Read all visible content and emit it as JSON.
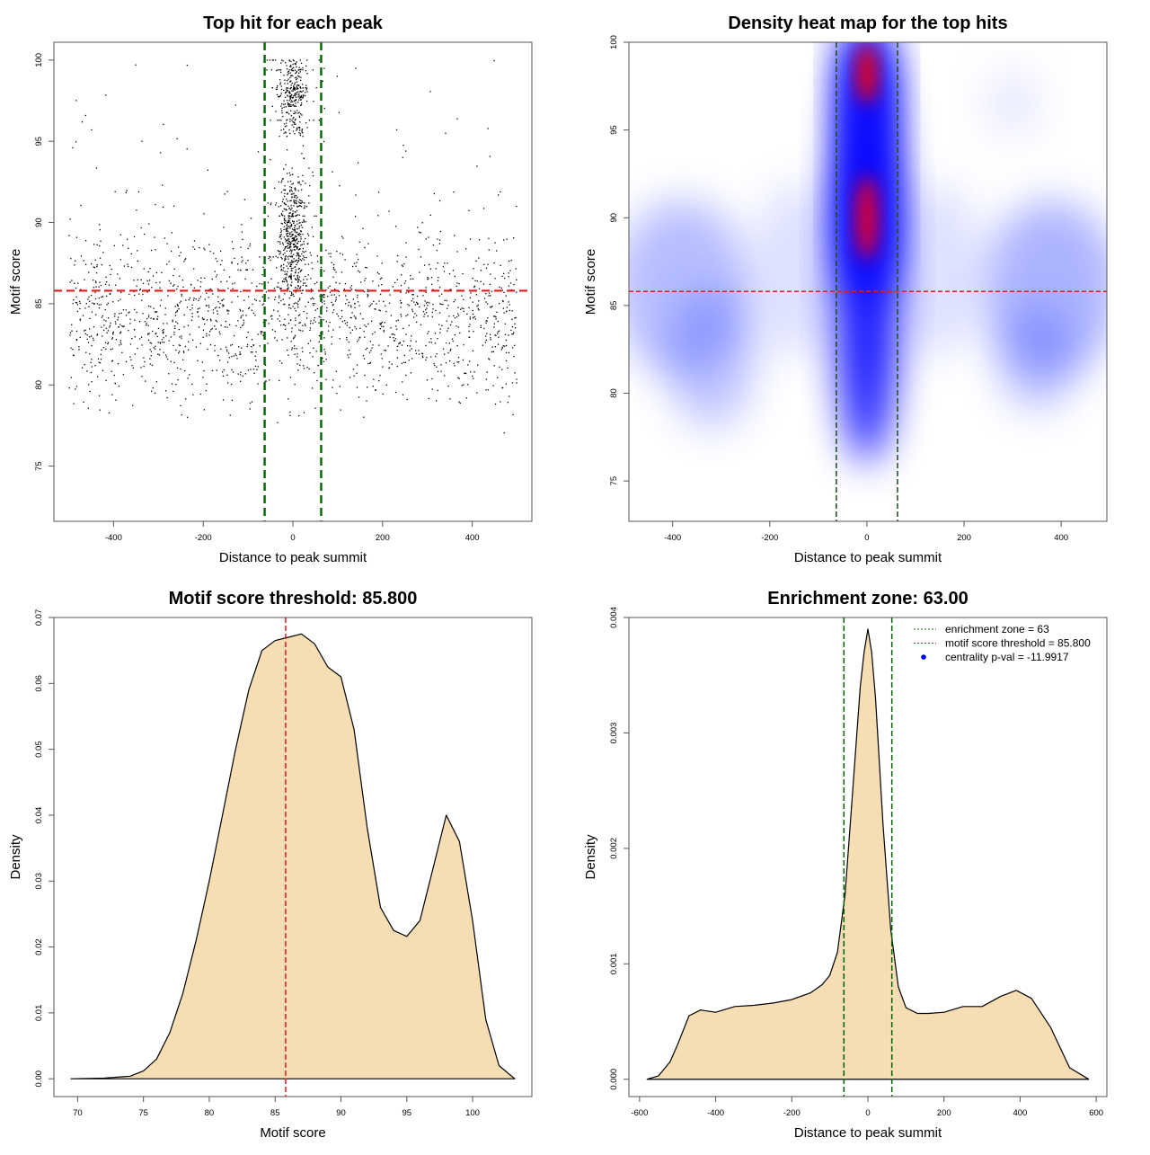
{
  "chart_data": [
    {
      "type": "scatter",
      "title": "Top hit for each peak",
      "xlabel": "Distance to peak summit",
      "ylabel": "Motif score",
      "xlim": [
        -533,
        533
      ],
      "ylim": [
        71.6,
        101.1
      ],
      "xticks": [
        -400,
        -200,
        0,
        200,
        400
      ],
      "yticks": [
        75,
        80,
        85,
        90,
        95,
        100
      ],
      "hlines": [
        {
          "y": 85.8,
          "color": "#e31a1c",
          "style": "dashed"
        }
      ],
      "vlines": [
        {
          "x": -63,
          "color": "#006400",
          "style": "dashed"
        },
        {
          "x": 63,
          "color": "#006400",
          "style": "dashed"
        }
      ],
      "point_color": "#000000"
    },
    {
      "type": "heatmap",
      "title": "Density heat map for the top hits",
      "xlabel": "Distance to peak summit",
      "ylabel": "Motif score",
      "xlim": [
        -490,
        494
      ],
      "ylim": [
        72.7,
        100
      ],
      "xticks": [
        -400,
        -200,
        0,
        200,
        400
      ],
      "yticks": [
        75,
        80,
        85,
        90,
        95,
        100
      ],
      "colors": [
        "#ffffff",
        "#0000ff",
        "#ff0000"
      ],
      "hlines": [
        {
          "y": 85.8,
          "color": "#e31a1c",
          "style": "dashed"
        }
      ],
      "vlines": [
        {
          "x": -63,
          "color": "#1a4d1a",
          "style": "dashed"
        },
        {
          "x": 63,
          "color": "#1a4d1a",
          "style": "dashed"
        }
      ]
    },
    {
      "type": "area",
      "title": "Motif score threshold: 85.800",
      "xlabel": "Motif score",
      "ylabel": "Density",
      "xlim": [
        68.2,
        104.5
      ],
      "ylim": [
        -0.0027,
        0.07
      ],
      "xticks": [
        70,
        75,
        80,
        85,
        90,
        95,
        100
      ],
      "yticks": [
        "0.00",
        "0.01",
        "0.02",
        "0.03",
        "0.04",
        "0.05",
        "0.06",
        "0.07"
      ],
      "fill": "#f5deb3",
      "x": [
        69.5,
        72,
        74,
        75,
        76,
        77,
        78,
        79,
        80,
        81,
        82,
        83,
        84,
        85,
        86,
        87,
        88,
        89,
        90,
        91,
        92,
        93,
        94,
        95,
        96,
        97,
        98,
        99,
        100,
        101,
        102,
        103.2
      ],
      "y": [
        0,
        0.0001,
        0.0004,
        0.0012,
        0.003,
        0.007,
        0.013,
        0.021,
        0.03,
        0.04,
        0.05,
        0.059,
        0.065,
        0.0665,
        0.067,
        0.0675,
        0.066,
        0.0625,
        0.061,
        0.053,
        0.038,
        0.026,
        0.0225,
        0.0216,
        0.024,
        0.032,
        0.04,
        0.036,
        0.024,
        0.009,
        0.002,
        0
      ],
      "vlines": [
        {
          "x": 85.8,
          "color": "#e31a1c",
          "style": "dashed"
        }
      ]
    },
    {
      "type": "area",
      "title": "Enrichment zone: 63.00",
      "xlabel": "Distance to peak summit",
      "ylabel": "Density",
      "xlim": [
        -628,
        628
      ],
      "ylim": [
        -0.00015,
        0.004
      ],
      "xticks": [
        -600,
        -400,
        -200,
        0,
        200,
        400,
        600
      ],
      "yticks": [
        "0.000",
        "0.001",
        "0.002",
        "0.003",
        "0.004"
      ],
      "fill": "#f5deb3",
      "x": [
        -580,
        -550,
        -520,
        -500,
        -470,
        -440,
        -400,
        -350,
        -300,
        -250,
        -200,
        -150,
        -120,
        -100,
        -80,
        -60,
        -40,
        -20,
        -10,
        0,
        10,
        20,
        40,
        60,
        80,
        100,
        130,
        160,
        200,
        250,
        300,
        350,
        390,
        430,
        480,
        530,
        580
      ],
      "y": [
        0,
        3e-05,
        0.00015,
        0.0003,
        0.00055,
        0.0006,
        0.00058,
        0.00063,
        0.00064,
        0.00066,
        0.00069,
        0.00075,
        0.00082,
        0.0009,
        0.0011,
        0.0016,
        0.0025,
        0.0034,
        0.0037,
        0.0039,
        0.0037,
        0.0033,
        0.0022,
        0.0013,
        0.0008,
        0.00062,
        0.00057,
        0.00057,
        0.00058,
        0.00063,
        0.00063,
        0.00072,
        0.00077,
        0.0007,
        0.00045,
        0.0001,
        0
      ],
      "vlines": [
        {
          "x": -63,
          "color": "#006400",
          "style": "dashed"
        },
        {
          "x": 63,
          "color": "#006400",
          "style": "dashed"
        }
      ],
      "legend": {
        "position": "top-right",
        "entries": [
          {
            "label": "enrichment zone = 63",
            "color": "#006400",
            "style": "dotted"
          },
          {
            "label": "motif score threshold = 85.800",
            "color": "#e31a1c",
            "style": "dotted"
          },
          {
            "label": "centrality p-val = -11.9917",
            "color": "#0000ff",
            "style": "point"
          }
        ]
      }
    }
  ]
}
